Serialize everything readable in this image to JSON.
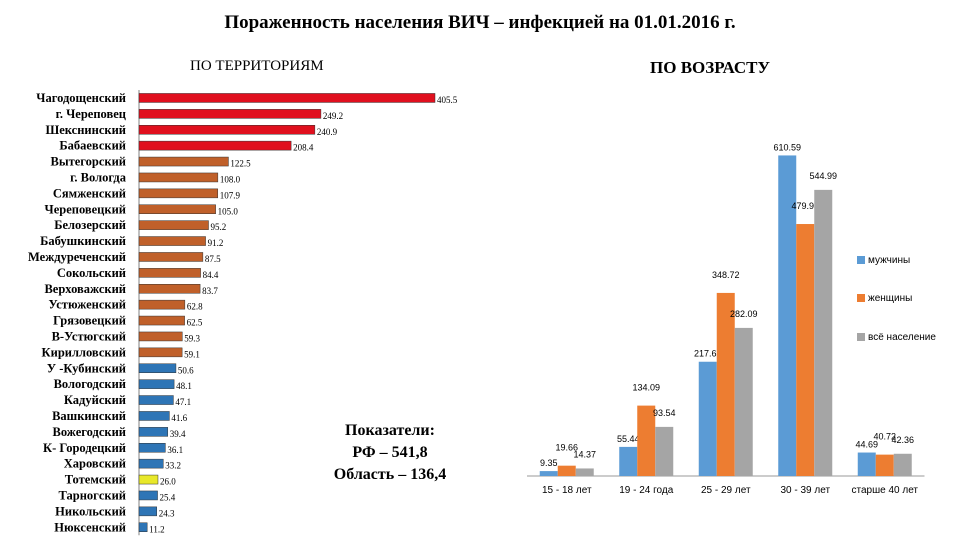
{
  "title": "Пораженность населения ВИЧ – инфекцией на 01.01.2016 г.",
  "left_heading": "ПО ТЕРРИТОРИЯМ",
  "right_heading": "ПО ВОЗРАСТУ",
  "indicators": {
    "heading": "Показатели:",
    "rf": "РФ – 541,8",
    "region": "Область – 136,4"
  },
  "colors": {
    "red": "#e0101e",
    "brown": "#c0602a",
    "blue": "#2e75b6",
    "yellow": "#e8e82a",
    "men": "#5b9bd5",
    "women": "#ed7d31",
    "all": "#a5a5a5"
  },
  "chart_data": [
    {
      "type": "bar",
      "orientation": "horizontal",
      "title": "ПО ТЕРРИТОРИЯМ",
      "categories": [
        "Чагодощенский",
        "г. Череповец",
        "Шекснинский",
        "Бабаевский",
        "Вытегорский",
        "г. Вологда",
        "Сямженский",
        "Череповецкий",
        "Белозерский",
        "Бабушкинский",
        "Междуреченский",
        "Сокольский",
        "Верховажский",
        "Устюженский",
        "Грязовецкий",
        "В-Устюгский",
        "Кирилловский",
        "У -Кубинский",
        "Вологодский",
        "Кадуйский",
        "Вашкинский",
        "Вожегодский",
        "К- Городецкий",
        "Харовский",
        "Тотемский",
        "Тарногский",
        "Никольский",
        "Нюксенский"
      ],
      "values": [
        405.5,
        249.2,
        240.9,
        208.4,
        122.5,
        108.0,
        107.9,
        105.0,
        95.2,
        91.2,
        87.5,
        84.4,
        83.7,
        62.8,
        62.5,
        59.3,
        59.1,
        50.6,
        48.1,
        47.1,
        41.6,
        39.4,
        36.1,
        33.2,
        26.0,
        25.4,
        24.3,
        11.2
      ],
      "value_labels": [
        "405.5",
        "249.2",
        "240.9",
        "208.4",
        "122.5",
        "108.0",
        "107.9",
        "105.0",
        "95.2",
        "91.2",
        "87.5",
        "84.4",
        "83.7",
        "62.8",
        "62.5",
        "59.3",
        "59.1",
        "50.6",
        "48.1",
        "47.1",
        "41.6",
        "39.4",
        "36.1",
        "33.2",
        "26.0",
        "25.4",
        "24.3",
        "11.2"
      ],
      "bar_colors": [
        "red",
        "red",
        "red",
        "red",
        "brown",
        "brown",
        "brown",
        "brown",
        "brown",
        "brown",
        "brown",
        "brown",
        "brown",
        "brown",
        "brown",
        "brown",
        "brown",
        "blue",
        "blue",
        "blue",
        "blue",
        "blue",
        "blue",
        "blue",
        "yellow",
        "blue",
        "blue",
        "blue"
      ],
      "xlim": [
        0,
        420
      ]
    },
    {
      "type": "bar",
      "title": "ПО ВОЗРАСТУ",
      "categories": [
        "15 - 18 лет",
        "19 - 24 года",
        "25 - 29 лет",
        "30 - 39 лет",
        "старше 40 лет"
      ],
      "series": [
        {
          "name": "мужчины",
          "values": [
            9.35,
            55.44,
            217.63,
            610.59,
            44.69
          ],
          "labels": [
            "9.35",
            "55.44",
            "217.63",
            "610.59",
            "44.69"
          ]
        },
        {
          "name": "женщины",
          "values": [
            19.66,
            134.09,
            348.72,
            479.95,
            40.72
          ],
          "labels": [
            "19.66",
            "134.09",
            "348.72",
            "479.95",
            "40.72"
          ]
        },
        {
          "name": "всё население",
          "values": [
            14.37,
            93.54,
            282.09,
            544.99,
            42.36
          ],
          "labels": [
            "14.37",
            "93.54",
            "282.09",
            "544.99",
            "42.36"
          ]
        }
      ],
      "ylim": [
        0,
        640
      ],
      "legend": "right"
    }
  ]
}
